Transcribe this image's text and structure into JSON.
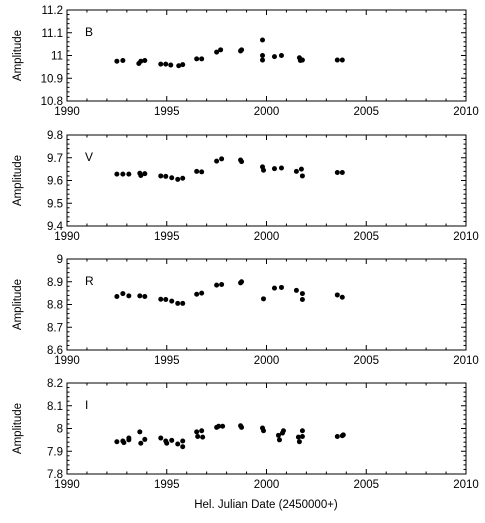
{
  "figure": {
    "xlabel": "Hel. Julian Date (2450000+)"
  },
  "chart_data": [
    {
      "type": "scatter",
      "panel_label": "B",
      "ylabel": "Amplitude",
      "xlim": [
        1990,
        2010
      ],
      "ylim": [
        10.8,
        11.2
      ],
      "x_ticks": [
        1990,
        1995,
        2000,
        2005,
        2010
      ],
      "y_ticks": [
        10.8,
        10.9,
        11,
        11.1,
        11.2
      ],
      "y_tick_labels": [
        "10.8",
        "10.9",
        "11",
        "11.1",
        "11.2"
      ],
      "grid": false,
      "points": [
        [
          1992.5,
          10.975
        ],
        [
          1992.8,
          10.978
        ],
        [
          1993.6,
          10.965
        ],
        [
          1993.7,
          10.975
        ],
        [
          1993.9,
          10.978
        ],
        [
          1994.7,
          10.962
        ],
        [
          1994.95,
          10.962
        ],
        [
          1995.2,
          10.958
        ],
        [
          1995.6,
          10.955
        ],
        [
          1995.8,
          10.96
        ],
        [
          1996.5,
          10.985
        ],
        [
          1996.75,
          10.985
        ],
        [
          1997.5,
          11.015
        ],
        [
          1997.7,
          11.025
        ],
        [
          1998.7,
          11.02
        ],
        [
          1998.75,
          11.025
        ],
        [
          1999.8,
          11.068
        ],
        [
          1999.8,
          11.0
        ],
        [
          1999.8,
          10.98
        ],
        [
          2000.4,
          10.995
        ],
        [
          2000.75,
          11.0
        ],
        [
          2001.65,
          10.99
        ],
        [
          2001.7,
          10.978
        ],
        [
          2001.8,
          10.98
        ],
        [
          2003.55,
          10.98
        ],
        [
          2003.8,
          10.98
        ]
      ]
    },
    {
      "type": "scatter",
      "panel_label": "V",
      "ylabel": "Amplitude",
      "xlim": [
        1990,
        2010
      ],
      "ylim": [
        9.4,
        9.8
      ],
      "x_ticks": [
        1990,
        1995,
        2000,
        2005,
        2010
      ],
      "y_ticks": [
        9.4,
        9.5,
        9.6,
        9.7,
        9.8
      ],
      "y_tick_labels": [
        "9.4",
        "9.5",
        "9.6",
        "9.7",
        "9.8"
      ],
      "grid": false,
      "points": [
        [
          1992.5,
          9.628
        ],
        [
          1992.8,
          9.628
        ],
        [
          1993.1,
          9.628
        ],
        [
          1993.65,
          9.632
        ],
        [
          1993.7,
          9.622
        ],
        [
          1993.9,
          9.63
        ],
        [
          1994.7,
          9.62
        ],
        [
          1994.95,
          9.618
        ],
        [
          1995.25,
          9.612
        ],
        [
          1995.55,
          9.605
        ],
        [
          1995.8,
          9.61
        ],
        [
          1996.5,
          9.64
        ],
        [
          1996.75,
          9.638
        ],
        [
          1997.5,
          9.685
        ],
        [
          1997.75,
          9.695
        ],
        [
          1998.7,
          9.69
        ],
        [
          1998.75,
          9.683
        ],
        [
          1999.8,
          9.66
        ],
        [
          1999.85,
          9.645
        ],
        [
          2000.4,
          9.652
        ],
        [
          2000.75,
          9.655
        ],
        [
          2001.5,
          9.64
        ],
        [
          2001.75,
          9.65
        ],
        [
          2001.8,
          9.62
        ],
        [
          2003.55,
          9.635
        ],
        [
          2003.8,
          9.635
        ]
      ]
    },
    {
      "type": "scatter",
      "panel_label": "R",
      "ylabel": "Amplitude",
      "xlim": [
        1990,
        2010
      ],
      "ylim": [
        8.6,
        9
      ],
      "x_ticks": [
        1990,
        1995,
        2000,
        2005,
        2010
      ],
      "y_ticks": [
        8.6,
        8.7,
        8.8,
        8.9,
        9
      ],
      "y_tick_labels": [
        "8.6",
        "8.7",
        "8.8",
        "8.9",
        "9"
      ],
      "grid": false,
      "points": [
        [
          1992.5,
          8.835
        ],
        [
          1992.8,
          8.848
        ],
        [
          1993.1,
          8.838
        ],
        [
          1993.65,
          8.838
        ],
        [
          1993.9,
          8.835
        ],
        [
          1994.7,
          8.823
        ],
        [
          1994.95,
          8.822
        ],
        [
          1995.25,
          8.815
        ],
        [
          1995.55,
          8.805
        ],
        [
          1995.8,
          8.805
        ],
        [
          1996.5,
          8.845
        ],
        [
          1996.75,
          8.85
        ],
        [
          1997.5,
          8.885
        ],
        [
          1997.75,
          8.888
        ],
        [
          1998.7,
          8.895
        ],
        [
          1998.75,
          8.9
        ],
        [
          1999.85,
          8.825
        ],
        [
          2000.4,
          8.872
        ],
        [
          2000.75,
          8.875
        ],
        [
          2001.5,
          8.862
        ],
        [
          2001.8,
          8.848
        ],
        [
          2001.8,
          8.822
        ],
        [
          2003.55,
          8.842
        ],
        [
          2003.8,
          8.832
        ]
      ]
    },
    {
      "type": "scatter",
      "panel_label": "I",
      "ylabel": "Amplitude",
      "xlim": [
        1990,
        2010
      ],
      "ylim": [
        7.8,
        8.2
      ],
      "x_ticks": [
        1990,
        1995,
        2000,
        2005,
        2010
      ],
      "y_ticks": [
        7.8,
        7.9,
        8,
        8.1,
        8.2
      ],
      "y_tick_labels": [
        "7.8",
        "7.9",
        "8",
        "8.1",
        "8.2"
      ],
      "grid": false,
      "points": [
        [
          1992.5,
          7.942
        ],
        [
          1992.8,
          7.945
        ],
        [
          1992.85,
          7.938
        ],
        [
          1993.1,
          7.95
        ],
        [
          1993.1,
          7.958
        ],
        [
          1993.65,
          7.985
        ],
        [
          1993.7,
          7.935
        ],
        [
          1993.9,
          7.952
        ],
        [
          1994.7,
          7.958
        ],
        [
          1994.95,
          7.945
        ],
        [
          1995.0,
          7.935
        ],
        [
          1995.25,
          7.948
        ],
        [
          1995.55,
          7.932
        ],
        [
          1995.8,
          7.92
        ],
        [
          1995.8,
          7.945
        ],
        [
          1996.5,
          7.985
        ],
        [
          1996.55,
          7.965
        ],
        [
          1996.75,
          7.99
        ],
        [
          1996.8,
          7.962
        ],
        [
          1997.5,
          8.005
        ],
        [
          1997.6,
          8.01
        ],
        [
          1997.8,
          8.01
        ],
        [
          1998.7,
          8.012
        ],
        [
          1998.75,
          8.005
        ],
        [
          1999.8,
          8.002
        ],
        [
          1999.85,
          7.99
        ],
        [
          2000.6,
          7.97
        ],
        [
          2000.65,
          7.95
        ],
        [
          2000.8,
          7.98
        ],
        [
          2000.85,
          7.99
        ],
        [
          2001.6,
          7.962
        ],
        [
          2001.65,
          7.942
        ],
        [
          2001.8,
          7.965
        ],
        [
          2001.8,
          7.99
        ],
        [
          2003.55,
          7.965
        ],
        [
          2003.8,
          7.968
        ],
        [
          2003.85,
          7.972
        ]
      ]
    }
  ]
}
